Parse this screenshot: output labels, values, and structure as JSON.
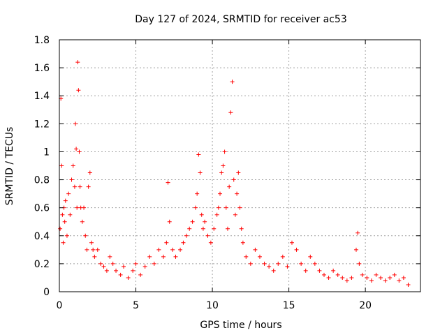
{
  "chart_data": {
    "type": "scatter",
    "title": "Day 127 of 2024, SRMTID for receiver ac53",
    "xlabel": "GPS time / hours",
    "ylabel": "SRMTID / TECUs",
    "xlim": [
      0,
      23.6
    ],
    "ylim": [
      0,
      1.8
    ],
    "xticks": [
      0,
      5,
      10,
      15,
      20
    ],
    "xtick_labels": [
      "0",
      "5",
      "10",
      "15",
      "20"
    ],
    "yticks": [
      0,
      0.2,
      0.4,
      0.6,
      0.8,
      1.0,
      1.2,
      1.4,
      1.6,
      1.8
    ],
    "ytick_labels": [
      "0",
      "0.2",
      "0.4",
      "0.6",
      "0.8",
      "1",
      "1.2",
      "1.4",
      "1.6",
      "1.8"
    ],
    "grid": true,
    "marker": "+",
    "marker_color": "#ff0000",
    "series": [
      {
        "name": "ac53",
        "x": [
          0.05,
          0.1,
          0.15,
          0.2,
          0.25,
          0.3,
          0.35,
          0.4,
          0.5,
          0.6,
          0.7,
          0.8,
          0.9,
          1.0,
          1.05,
          1.1,
          1.15,
          1.2,
          1.25,
          1.3,
          1.35,
          1.4,
          1.5,
          1.6,
          1.7,
          1.8,
          1.9,
          2.0,
          2.1,
          2.2,
          2.3,
          2.5,
          2.7,
          2.9,
          3.1,
          3.3,
          3.5,
          3.7,
          4.0,
          4.2,
          4.5,
          4.8,
          5.0,
          5.3,
          5.6,
          5.9,
          6.2,
          6.5,
          6.8,
          7.0,
          7.1,
          7.2,
          7.4,
          7.6,
          7.9,
          8.1,
          8.3,
          8.5,
          8.7,
          8.9,
          9.0,
          9.1,
          9.2,
          9.3,
          9.4,
          9.5,
          9.7,
          9.9,
          10.1,
          10.3,
          10.4,
          10.5,
          10.6,
          10.7,
          10.8,
          10.9,
          11.0,
          11.1,
          11.2,
          11.3,
          11.4,
          11.5,
          11.6,
          11.7,
          11.8,
          11.9,
          12.0,
          12.2,
          12.5,
          12.8,
          13.1,
          13.4,
          13.7,
          14.0,
          14.3,
          14.6,
          14.9,
          15.2,
          15.5,
          15.8,
          16.1,
          16.4,
          16.7,
          17.0,
          17.3,
          17.6,
          17.9,
          18.2,
          18.5,
          18.8,
          19.1,
          19.4,
          19.5,
          19.6,
          19.8,
          20.1,
          20.4,
          20.7,
          21.0,
          21.3,
          21.6,
          21.9,
          22.2,
          22.5,
          22.8
        ],
        "y": [
          0.45,
          1.38,
          0.9,
          0.55,
          0.35,
          0.6,
          0.5,
          0.65,
          0.4,
          0.7,
          0.55,
          0.8,
          0.9,
          0.75,
          1.2,
          1.02,
          0.6,
          1.64,
          1.44,
          1.0,
          0.75,
          0.6,
          0.5,
          0.6,
          0.4,
          0.3,
          0.75,
          0.85,
          0.35,
          0.3,
          0.25,
          0.3,
          0.2,
          0.18,
          0.15,
          0.25,
          0.2,
          0.15,
          0.12,
          0.18,
          0.1,
          0.15,
          0.2,
          0.12,
          0.18,
          0.25,
          0.2,
          0.3,
          0.25,
          0.35,
          0.78,
          0.5,
          0.3,
          0.25,
          0.3,
          0.35,
          0.4,
          0.45,
          0.5,
          0.6,
          0.7,
          0.98,
          0.85,
          0.55,
          0.45,
          0.5,
          0.4,
          0.35,
          0.45,
          0.55,
          0.6,
          0.7,
          0.85,
          0.9,
          1.0,
          0.6,
          0.45,
          0.75,
          1.28,
          1.5,
          0.8,
          0.55,
          0.7,
          0.85,
          0.6,
          0.45,
          0.35,
          0.25,
          0.2,
          0.3,
          0.25,
          0.2,
          0.18,
          0.15,
          0.2,
          0.25,
          0.18,
          0.35,
          0.3,
          0.2,
          0.15,
          0.25,
          0.2,
          0.15,
          0.12,
          0.1,
          0.15,
          0.12,
          0.1,
          0.08,
          0.1,
          0.3,
          0.42,
          0.2,
          0.12,
          0.1,
          0.08,
          0.12,
          0.1,
          0.08,
          0.1,
          0.12,
          0.08,
          0.1,
          0.05
        ]
      }
    ]
  }
}
